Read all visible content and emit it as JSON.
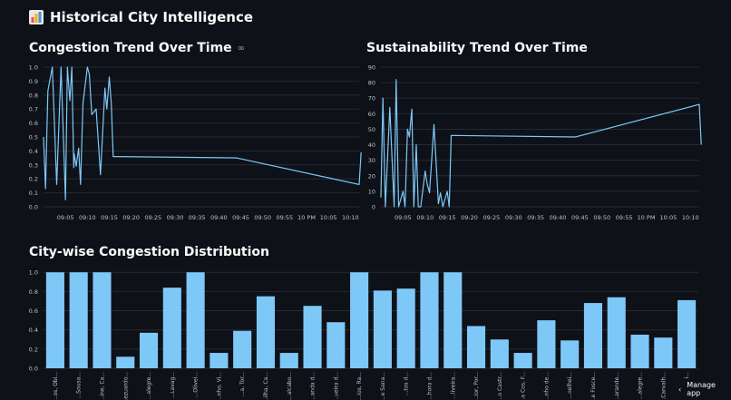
{
  "app": {
    "title": "Historical City Intelligence",
    "icon": "bar-chart-icon"
  },
  "footer": {
    "manage_app_label": "Manage app",
    "icon": "chevron-left-icon"
  },
  "colors": {
    "background": "#0e1117",
    "series": "#7ec8f8",
    "grid": "#262a33",
    "tick": "#bfc3ca"
  },
  "charts": {
    "congestion": {
      "title": "Congestion Trend Over Time",
      "chart_data": {
        "type": "line",
        "x": [
          "09:00",
          "09:00",
          "09:01",
          "09:02",
          "09:03",
          "09:04",
          "09:05",
          "09:05",
          "09:06",
          "09:06",
          "09:06",
          "09:07",
          "09:07",
          "09:08",
          "09:08",
          "09:09",
          "09:10",
          "09:10",
          "09:11",
          "09:12",
          "09:13",
          "09:14",
          "09:14",
          "09:15",
          "09:15",
          "09:15",
          "09:44",
          "10:12",
          "10:12"
        ],
        "y": [
          0.5,
          0.13,
          0.83,
          1.0,
          0.16,
          1.0,
          0.05,
          1.0,
          0.76,
          1.0,
          0.28,
          0.38,
          0.29,
          0.42,
          0.16,
          0.74,
          1.0,
          0.95,
          0.66,
          0.7,
          0.23,
          0.85,
          0.7,
          0.93,
          0.74,
          0.36,
          0.35,
          0.16,
          0.39
        ],
        "xticks": [
          "09:05",
          "09:10",
          "09:15",
          "09:20",
          "09:25",
          "09:30",
          "09:35",
          "09:40",
          "09:45",
          "09:50",
          "09:55",
          "10 PM",
          "10:05",
          "10:10"
        ],
        "yticks": [
          "0.0",
          "0.1",
          "0.2",
          "0.3",
          "0.4",
          "0.5",
          "0.6",
          "0.7",
          "0.8",
          "0.9",
          "1.0"
        ],
        "ylim": [
          0,
          1
        ],
        "grid": true
      }
    },
    "sustainability": {
      "title": "Sustainability Trend Over Time",
      "chart_data": {
        "type": "line",
        "x": [
          "09:00",
          "09:00",
          "09:01",
          "09:02",
          "09:03",
          "09:03",
          "09:04",
          "09:05",
          "09:05",
          "09:06",
          "09:06",
          "09:07",
          "09:07",
          "09:08",
          "09:08",
          "09:09",
          "09:10",
          "09:10",
          "09:11",
          "09:12",
          "09:13",
          "09:13",
          "09:14",
          "09:15",
          "09:15",
          "09:15",
          "09:44",
          "10:12",
          "10:12"
        ],
        "y": [
          6,
          70,
          0,
          64,
          0,
          82,
          0,
          10,
          0,
          50,
          45,
          63,
          0,
          40,
          0,
          0,
          23,
          15,
          9,
          53,
          2,
          9,
          0,
          10,
          0,
          46,
          45,
          66,
          40
        ],
        "xticks": [
          "09:05",
          "09:10",
          "09:15",
          "09:20",
          "09:25",
          "09:30",
          "09:35",
          "09:40",
          "09:45",
          "09:50",
          "09:55",
          "10 PM",
          "10:05",
          "10:10"
        ],
        "yticks": [
          "0",
          "10",
          "20",
          "30",
          "40",
          "50",
          "60",
          "70",
          "80",
          "90"
        ],
        "ylim": [
          0,
          90
        ],
        "grid": true
      }
    },
    "distribution": {
      "title": "City-wise Congestion Distribution",
      "chart_data": {
        "type": "bar",
        "categories": [
          "...os, Obi...",
          "...Sousa...",
          "...ine, Ca...",
          "...ezuardo...",
          "...alegre...",
          "...Lavag...",
          "...Olivei...",
          "...nho, Vi...",
          "...a, Tor...",
          "...ilha, Ca...",
          "...alcabo...",
          "...anda d...",
          "...ueira d...",
          "...ios, Ra...",
          "...e Sana...",
          "...tos d...",
          "...hora d...",
          "...liveira...",
          "...ior, Por...",
          "...o Castr...",
          "...a Cos, F...",
          "...nho de...",
          "...oelhei...",
          "...e Fosce...",
          "...arande...",
          "...alegre...",
          "...Carvalh...",
          "...onti..."
        ],
        "values": [
          1.0,
          1.0,
          1.0,
          0.12,
          0.37,
          0.84,
          1.0,
          0.16,
          0.39,
          0.75,
          0.16,
          0.65,
          0.48,
          1.0,
          0.81,
          0.83,
          1.0,
          1.0,
          0.44,
          0.3,
          0.16,
          0.5,
          0.29,
          0.68,
          0.74,
          0.35,
          0.32,
          0.71
        ],
        "yticks": [
          "0.0",
          "0.2",
          "0.4",
          "0.6",
          "0.8",
          "1.0"
        ],
        "ylim": [
          0,
          1.04
        ],
        "grid": true
      }
    }
  }
}
